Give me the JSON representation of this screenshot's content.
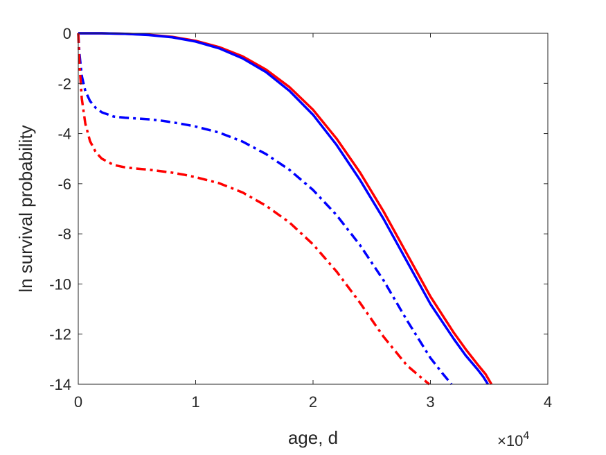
{
  "chart_data": {
    "type": "line",
    "xlabel": "age, d",
    "ylabel": "ln survival probability",
    "x_multiplier": "×10",
    "x_multiplier_exponent": "4",
    "xlim": [
      0,
      40000
    ],
    "ylim": [
      -14,
      0
    ],
    "xticks": [
      0,
      10000,
      20000,
      30000,
      40000
    ],
    "xtick_labels": [
      "0",
      "1",
      "2",
      "3",
      "4"
    ],
    "yticks": [
      0,
      -2,
      -4,
      -6,
      -8,
      -10,
      -12,
      -14
    ],
    "ytick_labels": [
      "0",
      "-2",
      "-4",
      "-6",
      "-8",
      "-10",
      "-12",
      "-14"
    ],
    "grid": false,
    "series": [
      {
        "color": "#ff0000",
        "style": "solid",
        "points": [
          [
            0,
            0
          ],
          [
            2000,
            0
          ],
          [
            4000,
            -0.02
          ],
          [
            6000,
            -0.06
          ],
          [
            8000,
            -0.14
          ],
          [
            10000,
            -0.3
          ],
          [
            12000,
            -0.55
          ],
          [
            14000,
            -0.92
          ],
          [
            16000,
            -1.45
          ],
          [
            18000,
            -2.15
          ],
          [
            20000,
            -3.05
          ],
          [
            22000,
            -4.2
          ],
          [
            24000,
            -5.55
          ],
          [
            26000,
            -7.1
          ],
          [
            28000,
            -8.8
          ],
          [
            30000,
            -10.5
          ],
          [
            32000,
            -11.95
          ],
          [
            33000,
            -12.6
          ],
          [
            34000,
            -13.2
          ],
          [
            34700,
            -13.6
          ],
          [
            35200,
            -14
          ]
        ]
      },
      {
        "color": "#0000ff",
        "style": "solid",
        "points": [
          [
            0,
            0
          ],
          [
            2000,
            0
          ],
          [
            4000,
            -0.02
          ],
          [
            6000,
            -0.07
          ],
          [
            8000,
            -0.16
          ],
          [
            10000,
            -0.33
          ],
          [
            12000,
            -0.6
          ],
          [
            14000,
            -1.0
          ],
          [
            16000,
            -1.55
          ],
          [
            18000,
            -2.3
          ],
          [
            20000,
            -3.25
          ],
          [
            22000,
            -4.45
          ],
          [
            24000,
            -5.85
          ],
          [
            26000,
            -7.4
          ],
          [
            28000,
            -9.1
          ],
          [
            30000,
            -10.8
          ],
          [
            32000,
            -12.2
          ],
          [
            33000,
            -12.85
          ],
          [
            34000,
            -13.4
          ],
          [
            34500,
            -13.7
          ],
          [
            34900,
            -14
          ]
        ]
      },
      {
        "color": "#0000ff",
        "style": "dashdot",
        "points": [
          [
            0,
            0
          ],
          [
            100,
            -0.8
          ],
          [
            300,
            -1.7
          ],
          [
            600,
            -2.3
          ],
          [
            1000,
            -2.7
          ],
          [
            1500,
            -2.98
          ],
          [
            2000,
            -3.15
          ],
          [
            3000,
            -3.32
          ],
          [
            4000,
            -3.37
          ],
          [
            5000,
            -3.4
          ],
          [
            6000,
            -3.43
          ],
          [
            7000,
            -3.48
          ],
          [
            8000,
            -3.55
          ],
          [
            9000,
            -3.63
          ],
          [
            10000,
            -3.72
          ],
          [
            12000,
            -3.96
          ],
          [
            14000,
            -4.32
          ],
          [
            16000,
            -4.82
          ],
          [
            18000,
            -5.45
          ],
          [
            20000,
            -6.25
          ],
          [
            22000,
            -7.25
          ],
          [
            24000,
            -8.45
          ],
          [
            26000,
            -9.85
          ],
          [
            28000,
            -11.45
          ],
          [
            30000,
            -12.95
          ],
          [
            31000,
            -13.55
          ],
          [
            31800,
            -14
          ]
        ]
      },
      {
        "color": "#ff0000",
        "style": "dashdot",
        "points": [
          [
            0,
            0
          ],
          [
            100,
            -1.2
          ],
          [
            300,
            -2.6
          ],
          [
            600,
            -3.6
          ],
          [
            1000,
            -4.3
          ],
          [
            1500,
            -4.75
          ],
          [
            2000,
            -5.0
          ],
          [
            3000,
            -5.25
          ],
          [
            4000,
            -5.35
          ],
          [
            5000,
            -5.4
          ],
          [
            6000,
            -5.44
          ],
          [
            7000,
            -5.5
          ],
          [
            8000,
            -5.56
          ],
          [
            9000,
            -5.64
          ],
          [
            10000,
            -5.74
          ],
          [
            12000,
            -5.98
          ],
          [
            14000,
            -6.35
          ],
          [
            16000,
            -6.88
          ],
          [
            18000,
            -7.55
          ],
          [
            20000,
            -8.42
          ],
          [
            22000,
            -9.5
          ],
          [
            24000,
            -10.75
          ],
          [
            26000,
            -12.1
          ],
          [
            28000,
            -13.25
          ],
          [
            29000,
            -13.65
          ],
          [
            29900,
            -14
          ]
        ]
      }
    ]
  }
}
